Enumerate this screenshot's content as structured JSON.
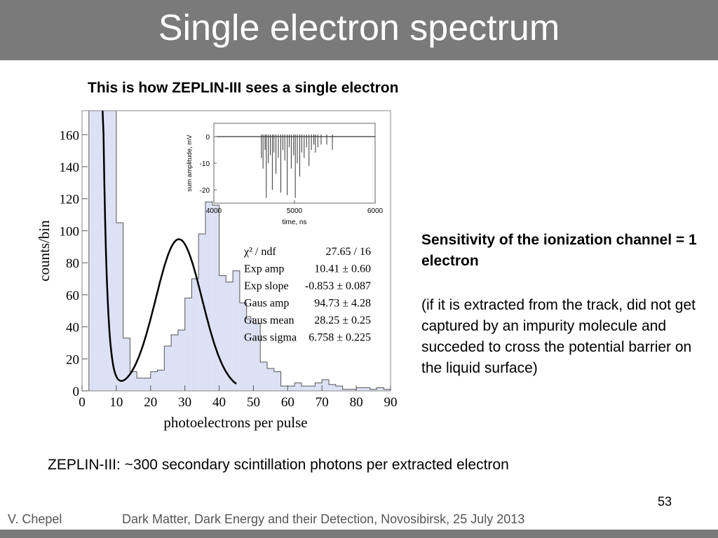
{
  "slide": {
    "title": "Single electron spectrum",
    "subtitle": "This is how ZEPLIN-III sees a single electron",
    "sensitivity": "Sensitivity of the ionization channel = 1 electron",
    "note": "(if it is extracted from the track, did not get captured by an impurity molecule and succeded to cross the potential barrier on the liquid surface)",
    "caption": "ZEPLIN-III: ~300 secondary scintillation photons per extracted electron",
    "page_number": "53",
    "author": "V. Chepel",
    "conference": "Dark Matter, Dark Energy and their Detection, Novosibirsk, 25 July 2013"
  },
  "colors": {
    "title_bar": "#7a7a7a",
    "histogram_fill": "#dde1f5",
    "histogram_line": "#555555",
    "fit_line": "#000000"
  },
  "chart_data": [
    {
      "type": "bar",
      "xlabel": "photoelectrons per pulse",
      "ylabel": "counts/bin",
      "xlim": [
        0,
        90
      ],
      "ylim": [
        0,
        175
      ],
      "x_ticks": [
        0,
        10,
        20,
        30,
        40,
        50,
        60,
        70,
        80,
        90
      ],
      "y_ticks": [
        0,
        20,
        40,
        60,
        80,
        100,
        120,
        140,
        160
      ],
      "bin_width": 2,
      "bin_start": 0,
      "values": [
        0,
        175,
        175,
        175,
        175,
        105,
        33,
        12,
        8,
        8,
        12,
        13,
        28,
        35,
        38,
        58,
        70,
        98,
        118,
        116,
        72,
        68,
        75,
        55,
        45,
        42,
        18,
        14,
        12,
        3,
        3,
        5,
        3,
        3,
        5,
        7,
        4,
        3,
        1,
        1,
        2,
        2,
        1,
        2,
        1,
        1
      ],
      "fit": {
        "legend": [
          {
            "param": "χ² / ndf",
            "value": "27.65 / 16"
          },
          {
            "param": "Exp amp",
            "value": "10.41 ± 0.60"
          },
          {
            "param": "Exp slope",
            "value": "-0.853 ± 0.087"
          },
          {
            "param": "Gaus amp",
            "value": "94.73 ± 4.28"
          },
          {
            "param": "Gaus mean",
            "value": "28.25 ± 0.25"
          },
          {
            "param": "Gaus sigma",
            "value": "6.758 ± 0.225"
          }
        ],
        "exp_amp": 10.41,
        "exp_slope": -0.853,
        "gaus_amp": 94.73,
        "gaus_mean": 28.25,
        "gaus_sigma": 6.758,
        "range": [
          6,
          45
        ]
      }
    },
    {
      "type": "line",
      "xlabel": "time, ns",
      "ylabel": "sum amplitude, mV",
      "xlim": [
        4000,
        6000
      ],
      "ylim": [
        -25,
        5
      ],
      "x_ticks": [
        4000,
        5000,
        6000
      ],
      "y_ticks": [
        0,
        -10,
        -20
      ],
      "spikes": [
        {
          "t": 4590,
          "a": -8
        },
        {
          "t": 4610,
          "a": -12
        },
        {
          "t": 4635,
          "a": -5
        },
        {
          "t": 4650,
          "a": -23
        },
        {
          "t": 4675,
          "a": -10
        },
        {
          "t": 4700,
          "a": -7
        },
        {
          "t": 4725,
          "a": -20
        },
        {
          "t": 4745,
          "a": -6
        },
        {
          "t": 4770,
          "a": -14
        },
        {
          "t": 4800,
          "a": -8
        },
        {
          "t": 4830,
          "a": -21
        },
        {
          "t": 4855,
          "a": -5
        },
        {
          "t": 4880,
          "a": -9
        },
        {
          "t": 4910,
          "a": -22
        },
        {
          "t": 4935,
          "a": -4
        },
        {
          "t": 4960,
          "a": -12
        },
        {
          "t": 4990,
          "a": -7
        },
        {
          "t": 5010,
          "a": -23
        },
        {
          "t": 5035,
          "a": -10
        },
        {
          "t": 5065,
          "a": -15
        },
        {
          "t": 5090,
          "a": -6
        },
        {
          "t": 5120,
          "a": -8
        },
        {
          "t": 5150,
          "a": -4
        },
        {
          "t": 5180,
          "a": -11
        },
        {
          "t": 5210,
          "a": -5
        },
        {
          "t": 5240,
          "a": -3
        },
        {
          "t": 5260,
          "a": -6
        },
        {
          "t": 5290,
          "a": -4
        },
        {
          "t": 5330,
          "a": -3
        },
        {
          "t": 5400,
          "a": -3
        },
        {
          "t": 5470,
          "a": -5
        }
      ]
    }
  ]
}
